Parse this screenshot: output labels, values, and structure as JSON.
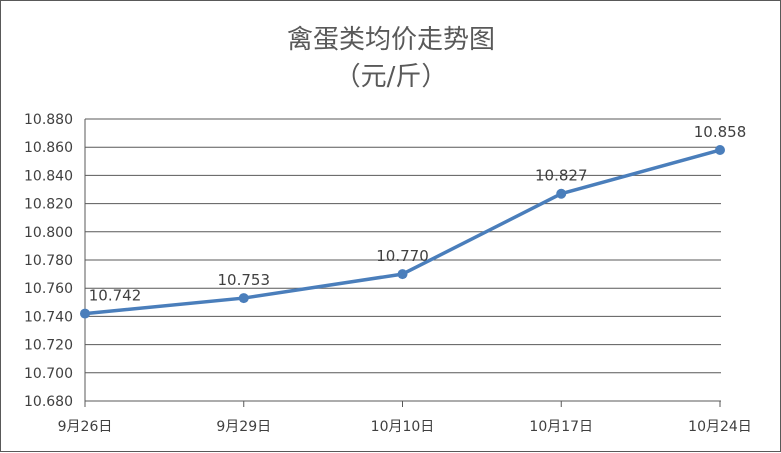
{
  "chart_data": {
    "type": "line",
    "title": "禽蛋类均价走势图",
    "subtitle": "（元/斤）",
    "categories": [
      "9月26日",
      "9月29日",
      "10月10日",
      "10月17日",
      "10月24日"
    ],
    "values": [
      10.742,
      10.753,
      10.77,
      10.827,
      10.858
    ],
    "data_labels": [
      "10.742",
      "10.753",
      "10.770",
      "10.827",
      "10.858"
    ],
    "ylim": [
      10.68,
      10.88
    ],
    "yticks": [
      "10.680",
      "10.700",
      "10.720",
      "10.740",
      "10.760",
      "10.780",
      "10.800",
      "10.820",
      "10.840",
      "10.860",
      "10.880"
    ],
    "grid": true,
    "legend": "none",
    "colors": {
      "series": "#4a7ebb",
      "grid": "#595959",
      "text": "#404040"
    }
  }
}
